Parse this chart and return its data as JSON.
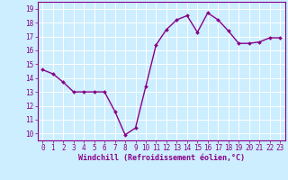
{
  "x": [
    0,
    1,
    2,
    3,
    4,
    5,
    6,
    7,
    8,
    9,
    10,
    11,
    12,
    13,
    14,
    15,
    16,
    17,
    18,
    19,
    20,
    21,
    22,
    23
  ],
  "y": [
    14.6,
    14.3,
    13.7,
    13.0,
    13.0,
    13.0,
    13.0,
    11.6,
    9.9,
    10.4,
    13.4,
    16.4,
    17.5,
    18.2,
    18.5,
    17.3,
    18.7,
    18.2,
    17.4,
    16.5,
    16.5,
    16.6,
    16.9,
    16.9
  ],
  "line_color": "#880088",
  "marker": "D",
  "marker_size": 2.0,
  "line_width": 1.0,
  "xlabel": "Windchill (Refroidissement éolien,°C)",
  "xlabel_fontsize": 6.0,
  "xtick_labels": [
    "0",
    "1",
    "2",
    "3",
    "4",
    "5",
    "6",
    "7",
    "8",
    "9",
    "10",
    "11",
    "12",
    "13",
    "14",
    "15",
    "16",
    "17",
    "18",
    "19",
    "20",
    "21",
    "22",
    "23"
  ],
  "ytick_labels": [
    "10",
    "11",
    "12",
    "13",
    "14",
    "15",
    "16",
    "17",
    "18",
    "19"
  ],
  "ylim": [
    9.5,
    19.5
  ],
  "xlim": [
    -0.5,
    23.5
  ],
  "bg_color": "#cceeff",
  "grid_color": "#ffffff",
  "tick_color": "#880088",
  "tick_fontsize": 5.5
}
